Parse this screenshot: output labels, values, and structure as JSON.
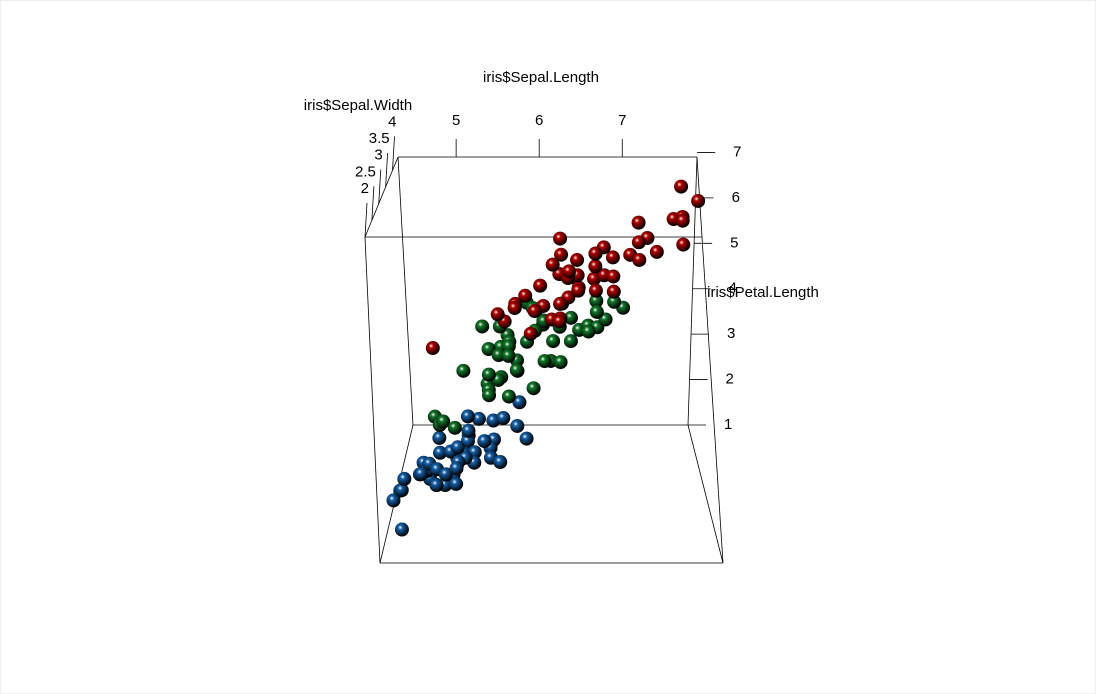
{
  "chart_data": {
    "type": "scatter3d",
    "xlabel": "iris$Sepal.Length",
    "ylabel": "iris$Sepal.Width",
    "zlabel": "iris$Petal.Length",
    "xlim": [
      4.3,
      7.9
    ],
    "ylim": [
      2.0,
      4.4
    ],
    "zlim": [
      1.0,
      6.9
    ],
    "xticks": [
      5,
      6,
      7
    ],
    "yticks": [
      2,
      2.5,
      3,
      3.5,
      4
    ],
    "zticks": [
      1,
      2,
      3,
      4,
      5,
      6,
      7
    ],
    "series": [
      {
        "color": "#1560a8",
        "x": [
          5.1,
          4.9,
          4.7,
          4.6,
          5.0,
          5.4,
          4.6,
          5.0,
          4.4,
          4.9,
          5.4,
          4.8,
          4.8,
          4.3,
          5.8,
          5.7,
          5.4,
          5.1,
          5.7,
          5.1,
          5.4,
          5.1,
          4.6,
          5.1,
          4.8,
          5.0,
          5.0,
          5.2,
          5.2,
          4.7,
          4.8,
          5.4,
          5.2,
          5.5,
          4.9,
          5.0,
          5.5,
          4.9,
          4.4,
          5.1,
          5.0,
          4.5,
          4.4,
          5.0,
          5.1,
          4.8,
          5.1,
          4.6,
          5.3,
          5.0
        ],
        "y": [
          3.5,
          3.0,
          3.2,
          3.1,
          3.6,
          3.9,
          3.4,
          3.4,
          2.9,
          3.1,
          3.7,
          3.4,
          3.0,
          3.0,
          4.0,
          4.4,
          3.9,
          3.5,
          3.8,
          3.8,
          3.4,
          3.7,
          3.6,
          3.3,
          3.4,
          3.0,
          3.4,
          3.5,
          3.4,
          3.2,
          3.1,
          3.4,
          4.1,
          4.2,
          3.1,
          3.2,
          3.5,
          3.6,
          3.0,
          3.4,
          3.5,
          2.3,
          3.2,
          3.5,
          3.8,
          3.0,
          3.8,
          3.2,
          3.7,
          3.3
        ],
        "z": [
          1.4,
          1.4,
          1.3,
          1.5,
          1.4,
          1.7,
          1.4,
          1.5,
          1.4,
          1.5,
          1.5,
          1.6,
          1.4,
          1.1,
          1.2,
          1.5,
          1.3,
          1.4,
          1.7,
          1.5,
          1.7,
          1.5,
          1.0,
          1.7,
          1.9,
          1.6,
          1.6,
          1.5,
          1.4,
          1.6,
          1.6,
          1.5,
          1.5,
          1.4,
          1.5,
          1.2,
          1.3,
          1.4,
          1.3,
          1.5,
          1.3,
          1.3,
          1.3,
          1.6,
          1.9,
          1.4,
          1.6,
          1.4,
          1.5,
          1.4
        ]
      },
      {
        "color": "#12782a",
        "x": [
          7.0,
          6.4,
          6.9,
          5.5,
          6.5,
          5.7,
          6.3,
          4.9,
          6.6,
          5.2,
          5.0,
          5.9,
          6.0,
          6.1,
          5.6,
          6.7,
          5.6,
          5.8,
          6.2,
          5.6,
          5.9,
          6.1,
          6.3,
          6.1,
          6.4,
          6.6,
          6.8,
          6.7,
          6.0,
          5.7,
          5.5,
          5.5,
          5.8,
          6.0,
          5.4,
          6.0,
          6.7,
          6.3,
          5.6,
          5.5,
          5.5,
          6.1,
          5.8,
          5.0,
          5.6,
          5.7,
          5.7,
          6.2,
          5.1,
          5.7
        ],
        "y": [
          3.2,
          3.2,
          3.1,
          2.3,
          2.8,
          2.8,
          3.3,
          2.4,
          2.9,
          2.7,
          2.0,
          3.0,
          2.2,
          2.9,
          2.9,
          3.1,
          3.0,
          2.7,
          2.2,
          2.5,
          3.2,
          2.8,
          2.5,
          2.8,
          2.9,
          3.0,
          2.8,
          3.0,
          2.9,
          2.6,
          2.4,
          2.4,
          2.7,
          2.7,
          3.0,
          3.4,
          3.1,
          2.3,
          3.0,
          2.5,
          2.6,
          3.0,
          2.6,
          2.3,
          2.7,
          3.0,
          2.9,
          2.9,
          2.5,
          2.8
        ],
        "z": [
          4.7,
          4.5,
          4.9,
          4.0,
          4.6,
          4.5,
          4.7,
          3.3,
          4.6,
          3.9,
          3.5,
          4.2,
          4.0,
          4.7,
          3.6,
          4.4,
          4.5,
          4.1,
          4.5,
          3.9,
          4.8,
          4.0,
          4.9,
          4.7,
          4.3,
          4.4,
          4.8,
          5.0,
          4.5,
          3.5,
          3.8,
          3.7,
          3.9,
          5.1,
          4.5,
          4.5,
          4.7,
          4.4,
          4.1,
          4.0,
          4.4,
          4.6,
          4.0,
          3.3,
          4.2,
          4.2,
          4.2,
          4.3,
          3.0,
          4.1
        ]
      },
      {
        "color": "#b20000",
        "x": [
          6.3,
          5.8,
          7.1,
          6.3,
          6.5,
          7.6,
          4.9,
          7.3,
          6.7,
          7.2,
          6.5,
          6.4,
          6.8,
          5.7,
          5.8,
          6.4,
          6.5,
          7.7,
          7.7,
          6.0,
          6.9,
          5.6,
          7.7,
          6.3,
          6.7,
          7.2,
          6.2,
          6.1,
          6.4,
          7.2,
          7.4,
          7.9,
          6.4,
          6.3,
          6.1,
          7.7,
          6.3,
          6.4,
          6.0,
          6.9,
          6.7,
          6.9,
          5.8,
          6.8,
          6.7,
          6.7,
          6.3,
          6.5,
          6.2,
          5.9
        ],
        "y": [
          3.3,
          2.7,
          3.0,
          2.9,
          3.0,
          3.0,
          2.5,
          2.9,
          2.5,
          3.6,
          3.2,
          2.7,
          3.0,
          2.5,
          2.8,
          3.2,
          3.0,
          3.8,
          2.6,
          2.2,
          3.2,
          2.8,
          2.8,
          2.7,
          3.3,
          3.2,
          2.8,
          3.0,
          2.8,
          3.0,
          2.8,
          3.8,
          2.8,
          2.8,
          2.6,
          3.0,
          3.4,
          3.1,
          3.0,
          3.1,
          3.1,
          3.1,
          2.7,
          3.2,
          3.3,
          3.0,
          2.5,
          3.0,
          3.4,
          3.0
        ],
        "z": [
          6.0,
          5.1,
          5.9,
          5.6,
          5.8,
          6.6,
          4.5,
          6.3,
          5.8,
          6.1,
          5.1,
          5.3,
          5.5,
          5.0,
          5.1,
          5.3,
          5.5,
          6.7,
          6.9,
          5.0,
          5.7,
          4.9,
          6.7,
          4.9,
          5.7,
          6.0,
          4.8,
          4.9,
          5.6,
          5.8,
          6.1,
          6.4,
          5.6,
          5.1,
          5.6,
          6.1,
          5.6,
          5.5,
          4.8,
          5.4,
          5.6,
          5.1,
          5.1,
          5.9,
          5.7,
          5.2,
          5.0,
          5.2,
          5.4,
          5.1
        ]
      }
    ]
  }
}
